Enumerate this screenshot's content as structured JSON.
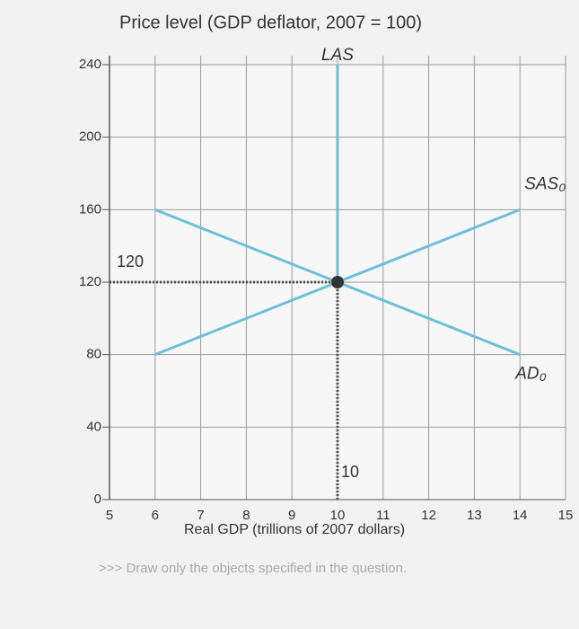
{
  "chart_data": {
    "type": "line",
    "title": "Price level (GDP deflator, 2007 = 100)",
    "x_label": "Real GDP (trillions of 2007 dollars)",
    "xlim": [
      5,
      15
    ],
    "xticks": [
      5,
      6,
      7,
      8,
      9,
      10,
      11,
      12,
      13,
      14,
      15
    ],
    "ylim": [
      0,
      240
    ],
    "yticks": [
      0,
      40,
      80,
      120,
      160,
      200,
      240
    ],
    "grid": true,
    "series": [
      {
        "name": "LAS",
        "color": "#6cc0dc",
        "x": [
          10,
          10
        ],
        "values": [
          240,
          120
        ]
      },
      {
        "name": "SAS₀",
        "color": "#6cc0dc",
        "x": [
          6,
          14
        ],
        "values": [
          80,
          160
        ]
      },
      {
        "name": "AD₀",
        "color": "#6cc0dc",
        "x": [
          6,
          14
        ],
        "values": [
          160,
          80
        ]
      }
    ],
    "equilibrium": {
      "x": 10,
      "y": 120,
      "color": "#333333"
    },
    "note": ">>> Draw only the objects specified in the question."
  }
}
